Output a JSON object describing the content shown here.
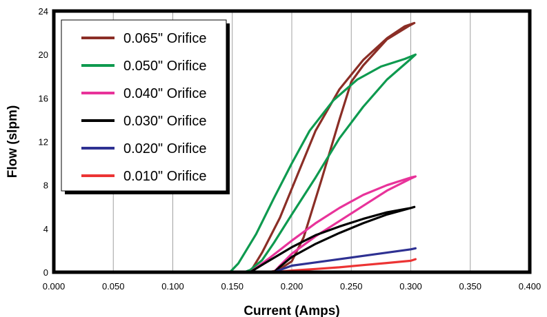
{
  "chart_data": {
    "type": "line",
    "title": "",
    "xlabel": "Current (Amps)",
    "ylabel": "Flow (slpm)",
    "xlim": [
      0,
      0.4
    ],
    "ylim": [
      0,
      24
    ],
    "x_ticks": [
      "0.000",
      "0.050",
      "0.100",
      "0.150",
      "0.200",
      "0.250",
      "0.300",
      "0.350",
      "0.400"
    ],
    "y_ticks": [
      "0",
      "4",
      "8",
      "12",
      "16",
      "20",
      "24"
    ],
    "grid": "vertical",
    "legend_position": "top-left",
    "series": [
      {
        "name": "0.065\" Orifice",
        "color": "#8b2e26",
        "x": [
          0,
          0.165,
          0.175,
          0.19,
          0.205,
          0.22,
          0.24,
          0.26,
          0.28,
          0.295,
          0.303,
          0.298,
          0.28,
          0.26,
          0.25,
          0.24,
          0.225,
          0.21,
          0.2,
          0.19,
          0.185,
          0.18
        ],
        "y": [
          0,
          0,
          1.8,
          5,
          9,
          13,
          16.8,
          19.5,
          21.5,
          22.6,
          22.9,
          22.6,
          21.4,
          19,
          17.5,
          14,
          8.5,
          3.2,
          1,
          0.3,
          0.1,
          0
        ]
      },
      {
        "name": "0.050\" Orifice",
        "color": "#0e9a4f",
        "x": [
          0,
          0.148,
          0.155,
          0.17,
          0.185,
          0.2,
          0.215,
          0.235,
          0.255,
          0.275,
          0.295,
          0.304,
          0.3,
          0.28,
          0.26,
          0.24,
          0.22,
          0.2,
          0.185,
          0.175,
          0.165,
          0.16
        ],
        "y": [
          0,
          0,
          0.8,
          3.5,
          6.8,
          10,
          13,
          15.8,
          17.7,
          18.9,
          19.6,
          20,
          19.6,
          17.7,
          15.2,
          12.3,
          8.7,
          5.3,
          2.7,
          1.1,
          0.2,
          0
        ]
      },
      {
        "name": "0.040\" Orifice",
        "color": "#e8339a",
        "x": [
          0,
          0.165,
          0.18,
          0.2,
          0.22,
          0.24,
          0.26,
          0.28,
          0.3,
          0.304,
          0.3,
          0.28,
          0.26,
          0.24,
          0.22,
          0.2,
          0.19,
          0.185
        ],
        "y": [
          0,
          0,
          1.2,
          2.9,
          4.5,
          5.9,
          7.1,
          8,
          8.7,
          8.8,
          8.6,
          7.5,
          6.1,
          4.7,
          3.3,
          1.7,
          0.6,
          0
        ]
      },
      {
        "name": "0.030\" Orifice",
        "color": "#000000",
        "x": [
          0,
          0.165,
          0.18,
          0.2,
          0.22,
          0.24,
          0.26,
          0.28,
          0.3,
          0.303,
          0.3,
          0.28,
          0.26,
          0.24,
          0.22,
          0.2,
          0.19,
          0.185
        ],
        "y": [
          0,
          0,
          1,
          2.3,
          3.4,
          4.2,
          4.9,
          5.5,
          5.9,
          6,
          5.9,
          5.3,
          4.5,
          3.6,
          2.6,
          1.4,
          0.5,
          0
        ]
      },
      {
        "name": "0.020\" Orifice",
        "color": "#2e3192",
        "x": [
          0,
          0.185,
          0.2,
          0.22,
          0.24,
          0.26,
          0.28,
          0.3,
          0.304
        ],
        "y": [
          0,
          0,
          0.6,
          0.9,
          1.2,
          1.5,
          1.8,
          2.1,
          2.2
        ]
      },
      {
        "name": "0.010\" Orifice",
        "color": "#ec3434",
        "x": [
          0,
          0.185,
          0.2,
          0.22,
          0.24,
          0.26,
          0.28,
          0.3,
          0.304
        ],
        "y": [
          0,
          0,
          0.15,
          0.3,
          0.45,
          0.65,
          0.85,
          1.05,
          1.2
        ]
      }
    ]
  }
}
